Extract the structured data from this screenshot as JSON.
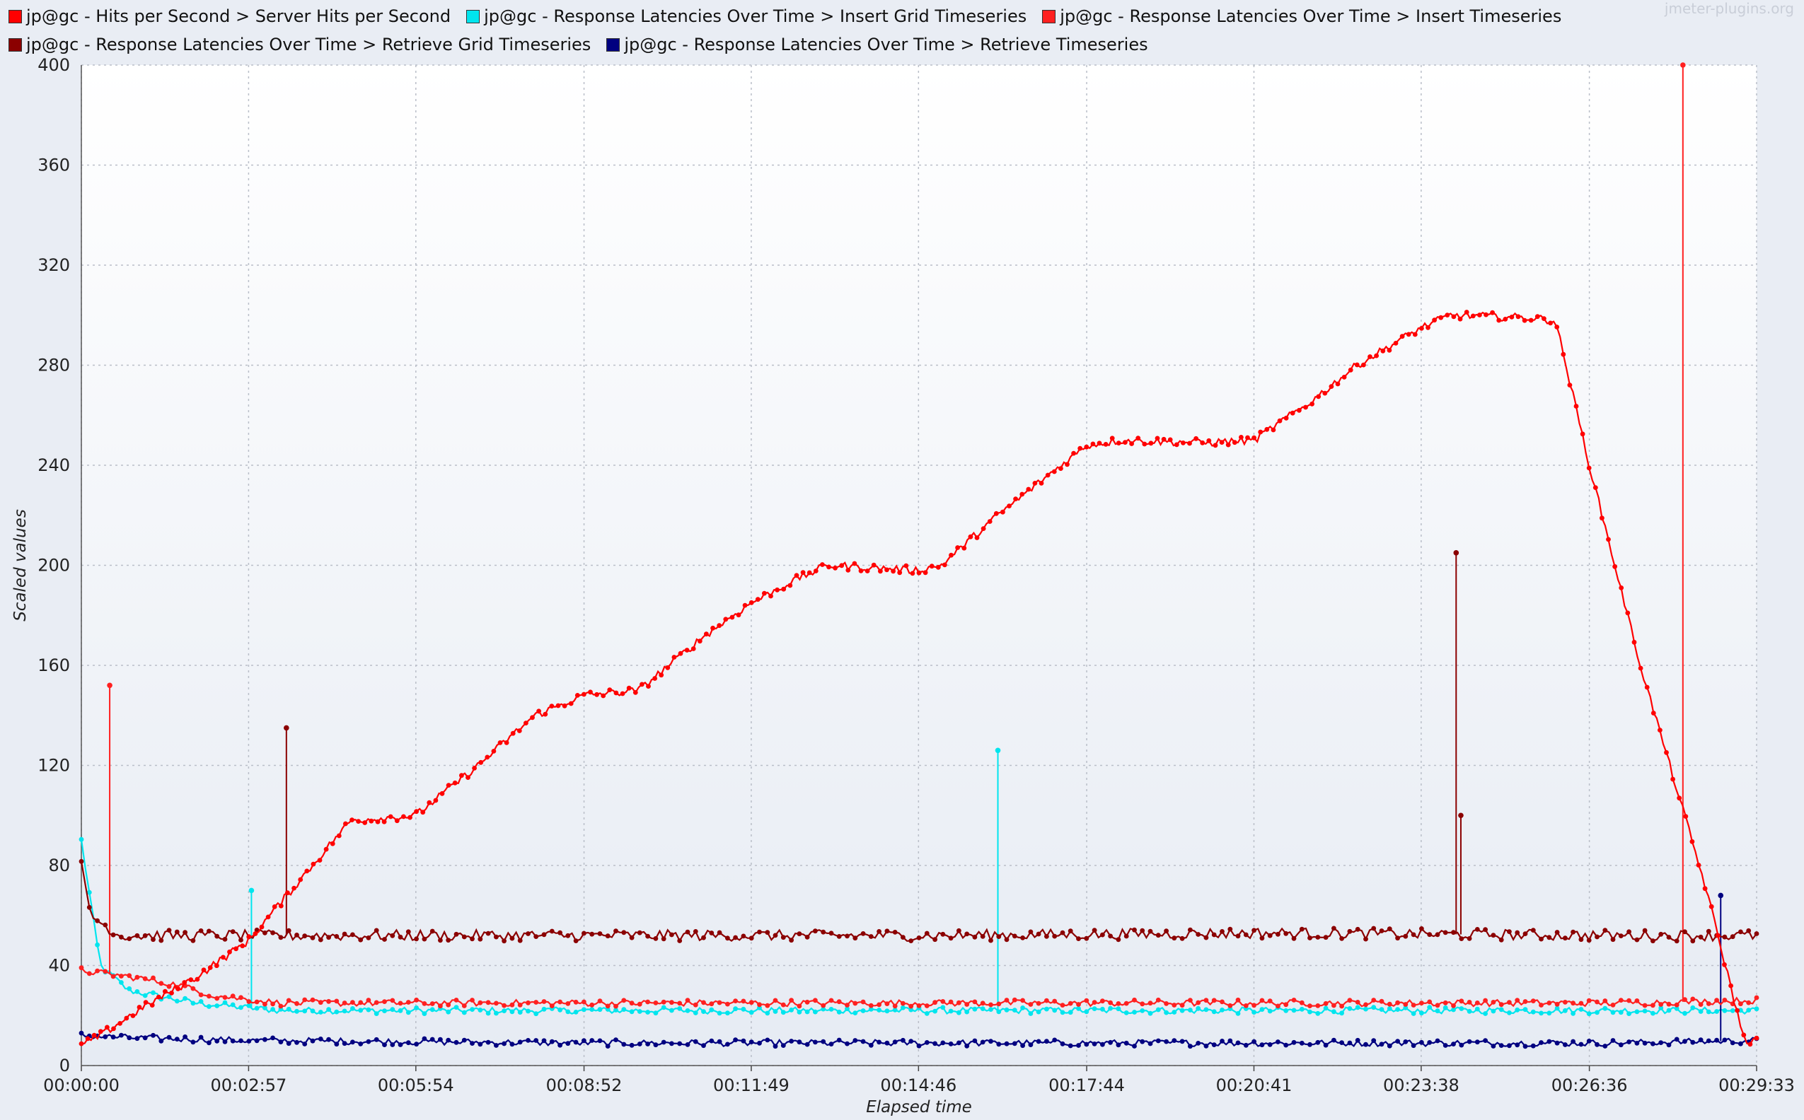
{
  "watermark": "jmeter-plugins.org",
  "chart_data": {
    "type": "line",
    "title": "",
    "xlabel": "Elapsed time",
    "ylabel": "Scaled values",
    "ylim": [
      0,
      400
    ],
    "xlim": [
      "00:00:00",
      "00:29:33"
    ],
    "x_ticks": [
      "00:00:00",
      "00:02:57",
      "00:05:54",
      "00:08:52",
      "00:11:49",
      "00:14:46",
      "00:17:44",
      "00:20:41",
      "00:23:38",
      "00:26:36",
      "00:29:33"
    ],
    "y_ticks": [
      0,
      40,
      80,
      120,
      160,
      200,
      240,
      280,
      320,
      360,
      400
    ],
    "grid": true,
    "legend_position": "top",
    "series": [
      {
        "name": "jp@gc - Hits per Second > Server Hits per Second",
        "color": "#ff0000",
        "x": [
          "00:00:00",
          "00:00:20",
          "00:01:00",
          "00:02:00",
          "00:02:57",
          "00:04:00",
          "00:04:45",
          "00:05:54",
          "00:07:00",
          "00:08:00",
          "00:08:52",
          "00:09:50",
          "00:11:00",
          "00:11:49",
          "00:12:40",
          "00:13:10",
          "00:14:46",
          "00:15:10",
          "00:16:10",
          "00:17:00",
          "00:17:44",
          "00:18:20",
          "00:19:50",
          "00:20:41",
          "00:21:40",
          "00:22:30",
          "00:23:38",
          "00:24:10",
          "00:25:30",
          "00:26:00",
          "00:26:36",
          "00:27:30",
          "00:28:40",
          "00:29:20"
        ],
        "y": [
          8,
          12,
          22,
          35,
          50,
          78,
          98,
          100,
          120,
          140,
          148,
          150,
          172,
          185,
          195,
          200,
          198,
          200,
          220,
          235,
          248,
          250,
          249,
          250,
          265,
          280,
          295,
          300,
          299,
          298,
          240,
          160,
          70,
          10
        ]
      },
      {
        "name": "jp@gc - Response Latencies Over Time > Insert Grid Timeseries",
        "color": "#00e5ee",
        "x": [
          "00:00:00",
          "00:00:20",
          "00:00:50",
          "00:02:00",
          "00:03:30",
          "00:09:00",
          "00:15:00",
          "00:21:00",
          "00:27:00",
          "00:29:33"
        ],
        "y": [
          90,
          40,
          30,
          25,
          22,
          22,
          22,
          22,
          22,
          22
        ],
        "spikes": [
          {
            "x": "00:16:10",
            "y": 126
          },
          {
            "x": "00:03:00",
            "y": 70
          }
        ]
      },
      {
        "name": "jp@gc - Response Latencies Over Time > Insert Timeseries",
        "color": "#ff2020",
        "x": [
          "00:00:00",
          "00:01:00",
          "00:01:45",
          "00:02:20",
          "00:03:30",
          "00:09:00",
          "00:15:00",
          "00:21:00",
          "00:27:00",
          "00:29:33"
        ],
        "y": [
          38,
          35,
          32,
          28,
          25,
          25,
          25,
          25,
          25,
          26
        ],
        "spikes": [
          {
            "x": "00:00:30",
            "y": 152
          },
          {
            "x": "00:28:15",
            "y": 400
          }
        ]
      },
      {
        "name": "jp@gc - Response Latencies Over Time > Retrieve Grid Timeseries",
        "color": "#8b0000",
        "x": [
          "00:00:00",
          "00:00:10",
          "00:00:40",
          "00:01:30",
          "00:03:00",
          "00:09:00",
          "00:15:00",
          "00:21:00",
          "00:27:00",
          "00:29:33"
        ],
        "y": [
          80,
          60,
          52,
          52,
          52,
          52,
          52,
          53,
          52,
          52
        ],
        "spikes": [
          {
            "x": "00:03:37",
            "y": 135
          },
          {
            "x": "00:24:15",
            "y": 205
          },
          {
            "x": "00:24:20",
            "y": 100
          }
        ]
      },
      {
        "name": "jp@gc - Response Latencies Over Time > Retrieve Timeseries",
        "color": "#000080",
        "x": [
          "00:00:00",
          "00:01:00",
          "00:03:00",
          "00:09:00",
          "00:15:00",
          "00:21:00",
          "00:27:00",
          "00:29:33"
        ],
        "y": [
          12,
          11,
          10,
          9,
          9,
          9,
          9,
          10
        ],
        "spikes": [
          {
            "x": "00:28:55",
            "y": 68
          }
        ]
      }
    ]
  }
}
